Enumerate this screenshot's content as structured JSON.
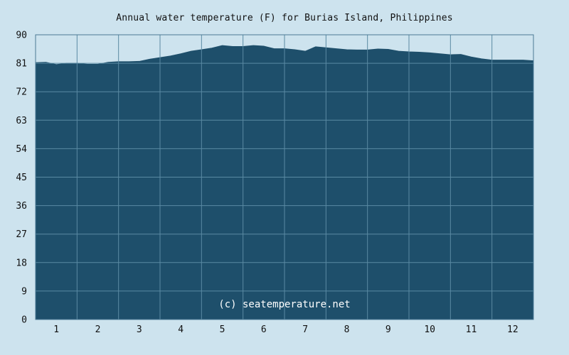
{
  "page": {
    "title": "Annual water temperature (F) for Burias Island, Philippines",
    "watermark": "(c) seatemperature.net"
  },
  "colors": {
    "background": "#cde3ee",
    "area_fill": "#1e4f6b",
    "grid": "#5a8aa3",
    "plot_border": "#4a7a94"
  },
  "chart_data": {
    "type": "area",
    "title": "Annual water temperature (F) for Burias Island, Philippines",
    "xlabel": "",
    "ylabel": "",
    "categories": [
      "1",
      "2",
      "3",
      "4",
      "5",
      "6",
      "7",
      "8",
      "9",
      "10",
      "11",
      "12"
    ],
    "ylim": [
      0,
      90
    ],
    "yticks": [
      "0",
      "9",
      "18",
      "27",
      "36",
      "45",
      "54",
      "63",
      "72",
      "81",
      "90"
    ],
    "grid": true,
    "legend": "none",
    "x": [
      0.0,
      0.25,
      0.5,
      0.75,
      1.0,
      1.25,
      1.5,
      1.75,
      2.0,
      2.25,
      2.5,
      2.75,
      3.0,
      3.25,
      3.5,
      3.75,
      4.0,
      4.25,
      4.5,
      4.75,
      5.0,
      5.25,
      5.5,
      5.75,
      6.0,
      6.25,
      6.5,
      6.75,
      7.0,
      7.25,
      7.5,
      7.75,
      8.0,
      8.25,
      8.5,
      8.75,
      9.0,
      9.25,
      9.5,
      9.75,
      10.0,
      10.25,
      10.5,
      10.75,
      11.0,
      11.25,
      11.5,
      11.75,
      12.0
    ],
    "values": [
      81.2,
      81.3,
      80.6,
      81.0,
      81.0,
      80.7,
      80.7,
      81.3,
      81.5,
      81.5,
      81.6,
      82.3,
      82.8,
      83.3,
      84.0,
      84.8,
      85.3,
      85.8,
      86.6,
      86.3,
      86.3,
      86.6,
      86.4,
      85.6,
      85.6,
      85.3,
      84.8,
      86.2,
      85.9,
      85.6,
      85.3,
      85.2,
      85.2,
      85.5,
      85.4,
      84.8,
      84.6,
      84.5,
      84.3,
      84.0,
      83.7,
      83.8,
      83.0,
      82.4,
      82.0,
      82.0,
      82.0,
      82.0,
      81.8
    ],
    "watermark": "(c) seatemperature.net"
  }
}
